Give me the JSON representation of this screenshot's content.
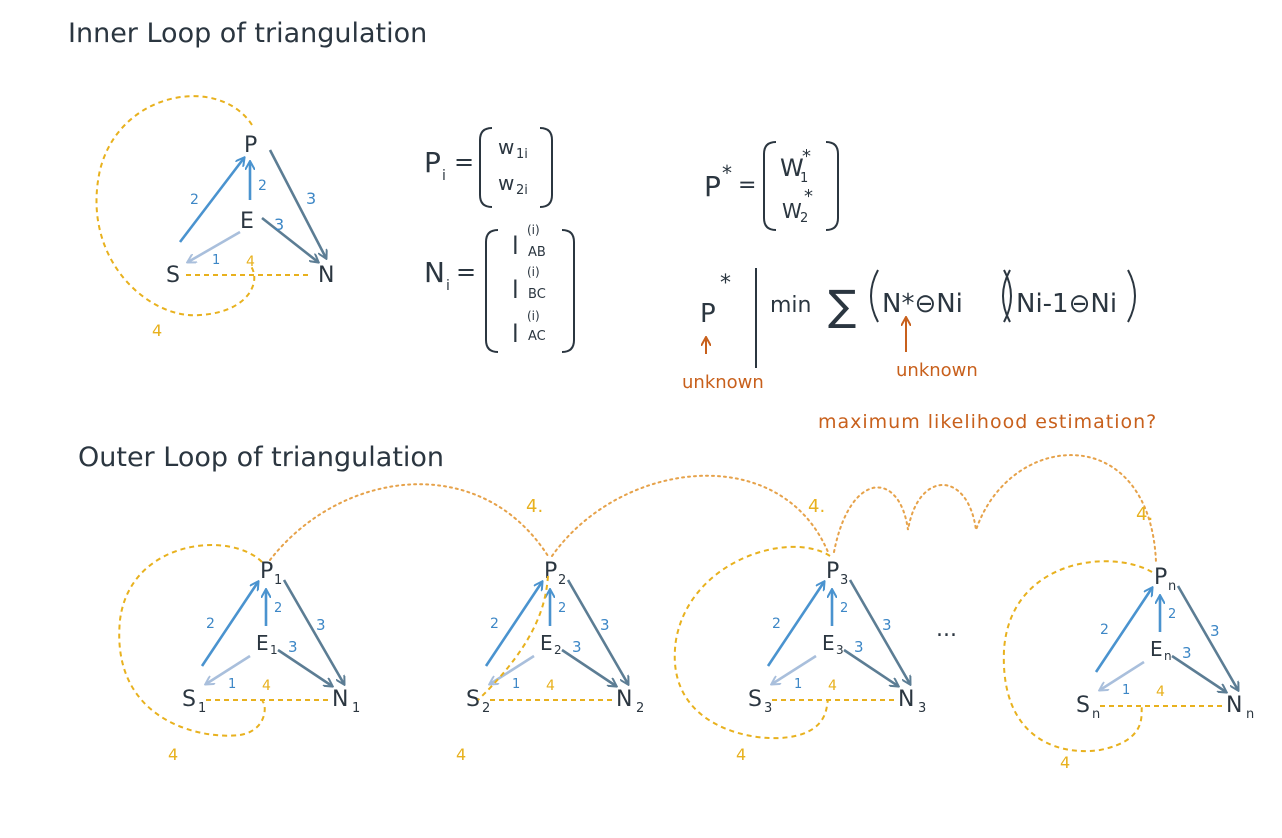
{
  "titles": {
    "inner": "Inner Loop of triangulation",
    "outer": "Outer Loop of triangulation"
  },
  "inner_diagram": {
    "nodes": {
      "p": "P",
      "e": "E",
      "s": "S",
      "n": "N"
    },
    "edge_labels": {
      "s_p": "2",
      "e_p": "2",
      "e_n": "3",
      "p_n": "3",
      "e_s": "1",
      "s_n": "4",
      "loop": "4"
    }
  },
  "formulas": {
    "p_i": {
      "lhs": "P",
      "sub": "i",
      "eq": "=",
      "entries": [
        "w",
        "w"
      ],
      "entry_subs": [
        "1i",
        "2i"
      ]
    },
    "n_i": {
      "lhs": "N",
      "sub": "i",
      "eq": "=",
      "sup": "(i)",
      "entries": [
        "l",
        "l",
        "l"
      ],
      "entry_subs": [
        "AB",
        "BC",
        "AC"
      ]
    },
    "p_star": {
      "lhs": "P",
      "sup": "*",
      "eq": "=",
      "entries": [
        "W",
        "W"
      ],
      "entry_subs": [
        "1",
        "2"
      ],
      "entry_sup": "*"
    },
    "objective": {
      "p": "P",
      "star": "*",
      "min": "min",
      "sum": "∑",
      "term1": "N*⊖Ni",
      "term2": "Ni-1⊖Ni"
    },
    "annotations": {
      "unknown_left": "unknown",
      "unknown_right": "unknown",
      "question": "maximum likelihood estimation?"
    }
  },
  "outer_diagrams": [
    {
      "p": "P",
      "p_sub": "1",
      "e": "E",
      "e_sub": "1",
      "s": "S",
      "s_sub": "1",
      "n": "N",
      "n_sub": "1"
    },
    {
      "p": "P",
      "p_sub": "2",
      "e": "E",
      "e_sub": "2",
      "s": "S",
      "s_sub": "2",
      "n": "N",
      "n_sub": "2"
    },
    {
      "p": "P",
      "p_sub": "3",
      "e": "E",
      "e_sub": "3",
      "s": "S",
      "s_sub": "3",
      "n": "N",
      "n_sub": "3"
    },
    {
      "p": "P",
      "p_sub": "n",
      "e": "E",
      "e_sub": "n",
      "s": "S",
      "s_sub": "n",
      "n": "N",
      "n_sub": "n"
    }
  ],
  "outer_labels": {
    "two": "2",
    "three": "3",
    "one": "1",
    "four": "4",
    "four_dot": "4.",
    "ellipsis": "..."
  },
  "colors": {
    "blue": "#4a93cf",
    "light_blue": "#a9bfdc",
    "grey": "#5c7d94",
    "gold": "#e8b11e",
    "orange": "#c8601c",
    "dotted": "#e6a24a"
  }
}
